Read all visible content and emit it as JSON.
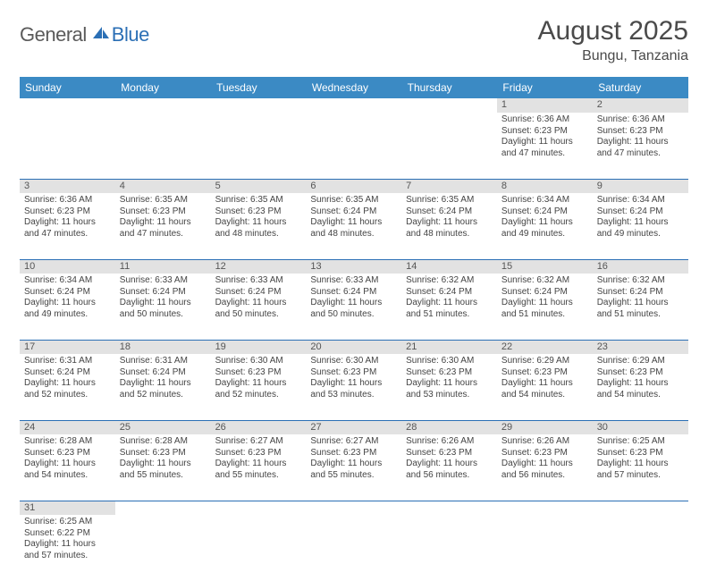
{
  "logo": {
    "part1": "General",
    "part2": "Blue"
  },
  "title": "August 2025",
  "location": "Bungu, Tanzania",
  "colors": {
    "header_bg": "#3b8ac4",
    "accent": "#2b6fb5",
    "daynum_bg": "#e2e2e2"
  },
  "weekdays": [
    "Sunday",
    "Monday",
    "Tuesday",
    "Wednesday",
    "Thursday",
    "Friday",
    "Saturday"
  ],
  "weeks": [
    [
      null,
      null,
      null,
      null,
      null,
      {
        "n": "1",
        "sr": "6:36 AM",
        "ss": "6:23 PM",
        "dl": "11 hours and 47 minutes."
      },
      {
        "n": "2",
        "sr": "6:36 AM",
        "ss": "6:23 PM",
        "dl": "11 hours and 47 minutes."
      }
    ],
    [
      {
        "n": "3",
        "sr": "6:36 AM",
        "ss": "6:23 PM",
        "dl": "11 hours and 47 minutes."
      },
      {
        "n": "4",
        "sr": "6:35 AM",
        "ss": "6:23 PM",
        "dl": "11 hours and 47 minutes."
      },
      {
        "n": "5",
        "sr": "6:35 AM",
        "ss": "6:23 PM",
        "dl": "11 hours and 48 minutes."
      },
      {
        "n": "6",
        "sr": "6:35 AM",
        "ss": "6:24 PM",
        "dl": "11 hours and 48 minutes."
      },
      {
        "n": "7",
        "sr": "6:35 AM",
        "ss": "6:24 PM",
        "dl": "11 hours and 48 minutes."
      },
      {
        "n": "8",
        "sr": "6:34 AM",
        "ss": "6:24 PM",
        "dl": "11 hours and 49 minutes."
      },
      {
        "n": "9",
        "sr": "6:34 AM",
        "ss": "6:24 PM",
        "dl": "11 hours and 49 minutes."
      }
    ],
    [
      {
        "n": "10",
        "sr": "6:34 AM",
        "ss": "6:24 PM",
        "dl": "11 hours and 49 minutes."
      },
      {
        "n": "11",
        "sr": "6:33 AM",
        "ss": "6:24 PM",
        "dl": "11 hours and 50 minutes."
      },
      {
        "n": "12",
        "sr": "6:33 AM",
        "ss": "6:24 PM",
        "dl": "11 hours and 50 minutes."
      },
      {
        "n": "13",
        "sr": "6:33 AM",
        "ss": "6:24 PM",
        "dl": "11 hours and 50 minutes."
      },
      {
        "n": "14",
        "sr": "6:32 AM",
        "ss": "6:24 PM",
        "dl": "11 hours and 51 minutes."
      },
      {
        "n": "15",
        "sr": "6:32 AM",
        "ss": "6:24 PM",
        "dl": "11 hours and 51 minutes."
      },
      {
        "n": "16",
        "sr": "6:32 AM",
        "ss": "6:24 PM",
        "dl": "11 hours and 51 minutes."
      }
    ],
    [
      {
        "n": "17",
        "sr": "6:31 AM",
        "ss": "6:24 PM",
        "dl": "11 hours and 52 minutes."
      },
      {
        "n": "18",
        "sr": "6:31 AM",
        "ss": "6:24 PM",
        "dl": "11 hours and 52 minutes."
      },
      {
        "n": "19",
        "sr": "6:30 AM",
        "ss": "6:23 PM",
        "dl": "11 hours and 52 minutes."
      },
      {
        "n": "20",
        "sr": "6:30 AM",
        "ss": "6:23 PM",
        "dl": "11 hours and 53 minutes."
      },
      {
        "n": "21",
        "sr": "6:30 AM",
        "ss": "6:23 PM",
        "dl": "11 hours and 53 minutes."
      },
      {
        "n": "22",
        "sr": "6:29 AM",
        "ss": "6:23 PM",
        "dl": "11 hours and 54 minutes."
      },
      {
        "n": "23",
        "sr": "6:29 AM",
        "ss": "6:23 PM",
        "dl": "11 hours and 54 minutes."
      }
    ],
    [
      {
        "n": "24",
        "sr": "6:28 AM",
        "ss": "6:23 PM",
        "dl": "11 hours and 54 minutes."
      },
      {
        "n": "25",
        "sr": "6:28 AM",
        "ss": "6:23 PM",
        "dl": "11 hours and 55 minutes."
      },
      {
        "n": "26",
        "sr": "6:27 AM",
        "ss": "6:23 PM",
        "dl": "11 hours and 55 minutes."
      },
      {
        "n": "27",
        "sr": "6:27 AM",
        "ss": "6:23 PM",
        "dl": "11 hours and 55 minutes."
      },
      {
        "n": "28",
        "sr": "6:26 AM",
        "ss": "6:23 PM",
        "dl": "11 hours and 56 minutes."
      },
      {
        "n": "29",
        "sr": "6:26 AM",
        "ss": "6:23 PM",
        "dl": "11 hours and 56 minutes."
      },
      {
        "n": "30",
        "sr": "6:25 AM",
        "ss": "6:23 PM",
        "dl": "11 hours and 57 minutes."
      }
    ],
    [
      {
        "n": "31",
        "sr": "6:25 AM",
        "ss": "6:22 PM",
        "dl": "11 hours and 57 minutes."
      },
      null,
      null,
      null,
      null,
      null,
      null
    ]
  ],
  "labels": {
    "sunrise": "Sunrise:",
    "sunset": "Sunset:",
    "daylight": "Daylight:"
  }
}
